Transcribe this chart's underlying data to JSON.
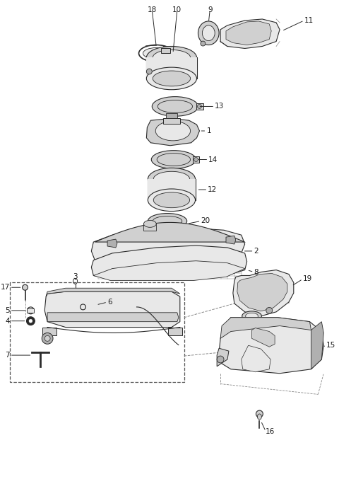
{
  "bg": "#ffffff",
  "lc": "#2a2a2a",
  "lc_light": "#888888",
  "fc_light": "#e8e8e8",
  "fc_mid": "#d0d0d0",
  "fc_dark": "#b0b0b0",
  "lw": 0.8,
  "fontsize": 7.5,
  "fig_w": 4.8,
  "fig_h": 6.94,
  "dpi": 100
}
